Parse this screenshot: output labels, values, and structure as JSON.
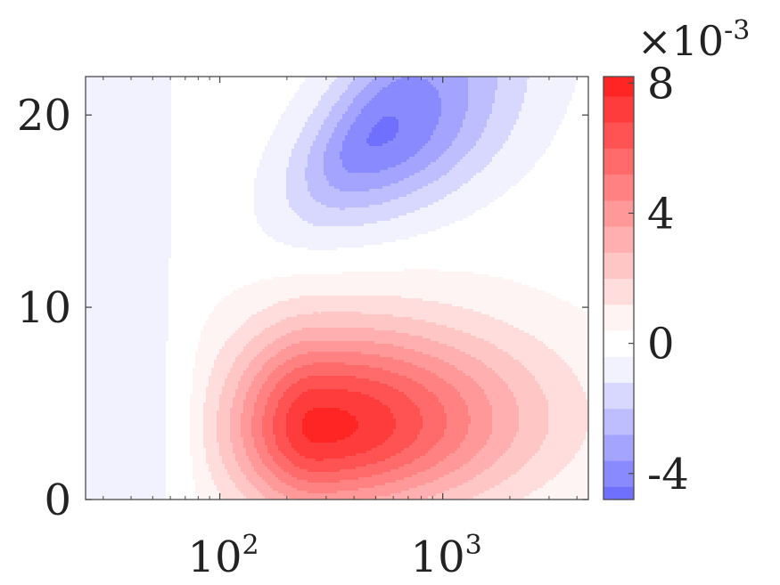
{
  "chart_data": {
    "type": "heatmap",
    "title": "",
    "xlabel": "",
    "ylabel": "",
    "x_scale": "log",
    "xlim": [
      25,
      4500
    ],
    "ylim": [
      0,
      22
    ],
    "x_ticks": [
      100,
      1000
    ],
    "x_tick_labels": [
      {
        "base": "10",
        "exp": "2"
      },
      {
        "base": "10",
        "exp": "3"
      }
    ],
    "y_ticks": [
      0,
      10,
      20
    ],
    "y_tick_labels": [
      "0",
      "10",
      "20"
    ],
    "grid": false,
    "colorbar": {
      "multiplier": {
        "base": "×10",
        "exp": "-3"
      },
      "range": [
        -4.8,
        8.2
      ],
      "ticks": [
        -4,
        0,
        4,
        8
      ],
      "tick_labels": [
        "-4",
        "0",
        "4",
        "8"
      ],
      "color_negative": "#6363ff",
      "color_zero": "#ffffff",
      "color_positive": "#ff1a1a"
    },
    "contour_levels": [
      -4.4,
      -3.6,
      -2.8,
      -2.0,
      -1.2,
      -0.4,
      0.4,
      1.2,
      2.0,
      2.8,
      3.6,
      4.4,
      5.2,
      6.0,
      6.8,
      7.6
    ],
    "features": [
      {
        "kind": "max",
        "x": 280,
        "y": 3.8,
        "value": 7.9
      },
      {
        "kind": "min",
        "x": 520,
        "y": 19.0,
        "value": -4.5
      }
    ]
  }
}
